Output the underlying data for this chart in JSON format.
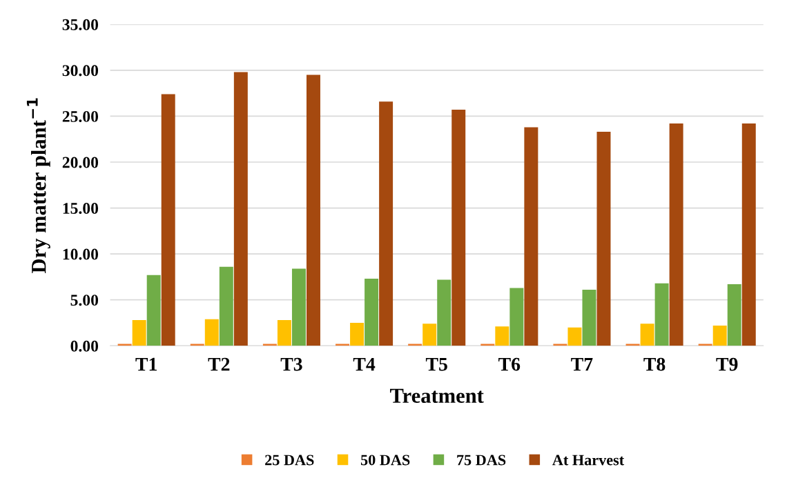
{
  "chart_data": {
    "type": "bar",
    "xlabel": "Treatment",
    "ylabel": "Dry matter plant$^{−1}$",
    "categories": [
      "T1",
      "T2",
      "T3",
      "T4",
      "T5",
      "T6",
      "T7",
      "T8",
      "T9"
    ],
    "series": [
      {
        "name": "25 DAS",
        "color": "#ed7d31",
        "values": [
          0.2,
          0.2,
          0.2,
          0.2,
          0.2,
          0.2,
          0.2,
          0.2,
          0.2
        ]
      },
      {
        "name": "50 DAS",
        "color": "#ffc000",
        "values": [
          2.8,
          2.9,
          2.8,
          2.5,
          2.4,
          2.1,
          2.0,
          2.4,
          2.2
        ]
      },
      {
        "name": "75 DAS",
        "color": "#70ad47",
        "values": [
          7.7,
          8.6,
          8.4,
          7.3,
          7.2,
          6.3,
          6.1,
          6.8,
          6.7
        ]
      },
      {
        "name": "At Harvest",
        "color": "#a5490f",
        "values": [
          27.4,
          29.8,
          29.5,
          26.6,
          25.7,
          23.8,
          23.3,
          24.2,
          24.2
        ]
      }
    ],
    "ylim": [
      0,
      35
    ],
    "yticks": [
      {
        "value": 0,
        "label": "0.00"
      },
      {
        "value": 5,
        "label": "5.00"
      },
      {
        "value": 10,
        "label": "10.00"
      },
      {
        "value": 15,
        "label": "15.00"
      },
      {
        "value": 20,
        "label": "20.00"
      },
      {
        "value": 25,
        "label": "25.00"
      },
      {
        "value": 30,
        "label": "30.00"
      },
      {
        "value": 35,
        "label": "35.00"
      }
    ],
    "grid": "y",
    "legend": "bottom"
  }
}
